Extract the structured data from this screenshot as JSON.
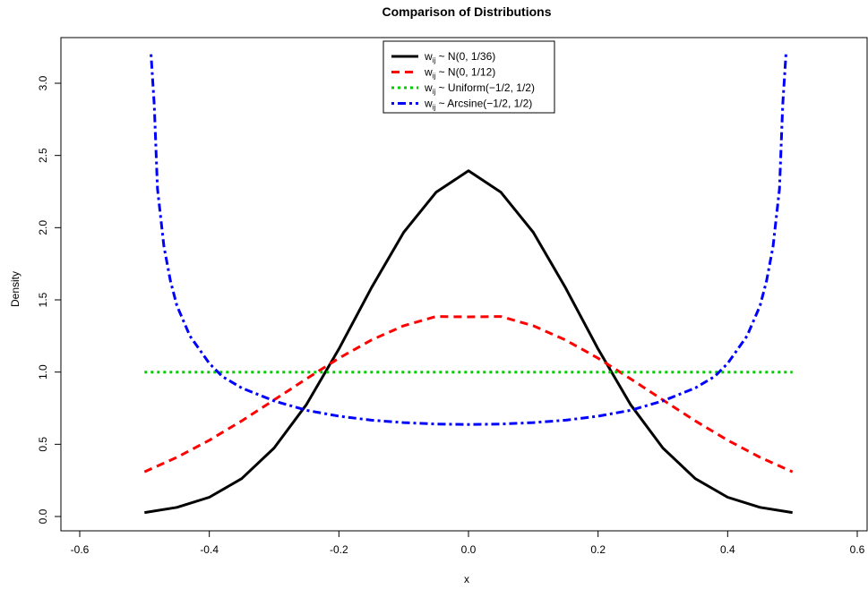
{
  "chart_data": {
    "type": "line",
    "title": "Comparison of Distributions",
    "xlabel": "x",
    "ylabel": "Density",
    "xlim": [
      -0.6,
      0.6
    ],
    "ylim": [
      0,
      3.2
    ],
    "xticks": [
      -0.6,
      -0.4,
      -0.2,
      0.0,
      0.2,
      0.4,
      0.6
    ],
    "xtick_labels": [
      "-0.6",
      "-0.4",
      "-0.2",
      "0.0",
      "0.2",
      "0.4",
      "0.6"
    ],
    "yticks": [
      0.0,
      0.5,
      1.0,
      1.5,
      2.0,
      2.5,
      3.0
    ],
    "ytick_labels": [
      "0.0",
      "0.5",
      "1.0",
      "1.5",
      "2.0",
      "2.5",
      "3.0"
    ],
    "grid": false,
    "legend_position": "top-center",
    "series": [
      {
        "name": "w_ij ~ N(0, 1/36)",
        "legend_main": "w",
        "legend_sub": "ij",
        "legend_rest": " ~ N(0, 1/36)",
        "color": "#000000",
        "style": "solid",
        "x": [
          -0.5,
          -0.45,
          -0.4,
          -0.35,
          -0.3,
          -0.25,
          -0.2,
          -0.15,
          -0.1,
          -0.05,
          0.0,
          0.05,
          0.1,
          0.15,
          0.2,
          0.25,
          0.3,
          0.35,
          0.4,
          0.45,
          0.5
        ],
        "y": [
          0.027,
          0.063,
          0.133,
          0.262,
          0.474,
          0.776,
          1.16,
          1.582,
          1.968,
          2.245,
          2.394,
          2.245,
          1.968,
          1.582,
          1.16,
          0.776,
          0.474,
          0.262,
          0.133,
          0.063,
          0.027
        ]
      },
      {
        "name": "w_ij ~ N(0, 1/12)",
        "legend_main": "w",
        "legend_sub": "ij",
        "legend_rest": " ~ N(0, 1/12)",
        "color": "#ff0000",
        "style": "dashed",
        "x": [
          -0.5,
          -0.45,
          -0.4,
          -0.35,
          -0.3,
          -0.25,
          -0.2,
          -0.15,
          -0.1,
          -0.05,
          0.0,
          0.05,
          0.1,
          0.15,
          0.2,
          0.25,
          0.3,
          0.35,
          0.4,
          0.45,
          0.5
        ],
        "y": [
          0.309,
          0.41,
          0.528,
          0.662,
          0.807,
          0.954,
          1.096,
          1.222,
          1.321,
          1.385,
          1.382,
          1.385,
          1.321,
          1.222,
          1.096,
          0.954,
          0.807,
          0.662,
          0.528,
          0.41,
          0.309
        ]
      },
      {
        "name": "w_ij ~ Uniform(-1/2, 1/2)",
        "legend_main": "w",
        "legend_sub": "ij",
        "legend_rest": " ~ Uniform(−1/2, 1/2)",
        "color": "#00cd00",
        "style": "dotted",
        "x": [
          -0.5,
          0.5
        ],
        "y": [
          1.0,
          1.0
        ]
      },
      {
        "name": "w_ij ~ Arcsine(-1/2, 1/2)",
        "legend_main": "w",
        "legend_sub": "ij",
        "legend_rest": " ~ Arcsine(−1/2, 1/2)",
        "color": "#0000ff",
        "style": "dotdash",
        "x": [
          -0.49,
          -0.485,
          -0.48,
          -0.47,
          -0.46,
          -0.45,
          -0.43,
          -0.4,
          -0.38,
          -0.35,
          -0.3,
          -0.25,
          -0.2,
          -0.15,
          -0.1,
          -0.05,
          0.0,
          0.05,
          0.1,
          0.15,
          0.2,
          0.25,
          0.3,
          0.35,
          0.38,
          0.4,
          0.43,
          0.45,
          0.46,
          0.47,
          0.48,
          0.485,
          0.49
        ],
        "y": [
          3.2,
          2.85,
          2.27,
          1.87,
          1.63,
          1.46,
          1.25,
          1.06,
          0.97,
          0.89,
          0.8,
          0.735,
          0.695,
          0.667,
          0.65,
          0.64,
          0.637,
          0.64,
          0.65,
          0.667,
          0.695,
          0.735,
          0.8,
          0.89,
          0.97,
          1.06,
          1.25,
          1.46,
          1.63,
          1.87,
          2.27,
          2.85,
          3.2
        ]
      }
    ]
  }
}
